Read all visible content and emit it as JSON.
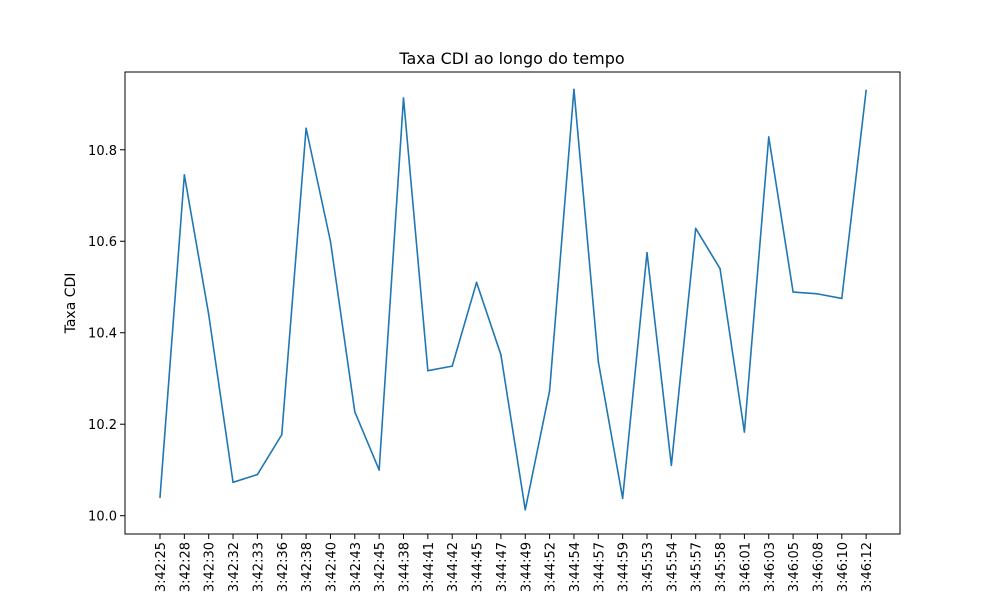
{
  "chart_data": {
    "type": "line",
    "title": "Taxa CDI ao longo do tempo",
    "xlabel": "",
    "ylabel": "Taxa CDI",
    "ylim": [
      9.96,
      10.97
    ],
    "yticks": [
      "10.0",
      "10.2",
      "10.4",
      "10.6",
      "10.8"
    ],
    "ytick_values": [
      10.0,
      10.2,
      10.4,
      10.6,
      10.8
    ],
    "grid": false,
    "categories": [
      "3:42:25",
      "3:42:28",
      "3:42:30",
      "3:42:32",
      "3:42:33",
      "3:42:36",
      "3:42:38",
      "3:42:40",
      "3:42:43",
      "3:42:45",
      "3:44:38",
      "3:44:41",
      "3:44:42",
      "3:44:45",
      "3:44:47",
      "3:44:49",
      "3:44:52",
      "3:44:54",
      "3:44:57",
      "3:44:59",
      "3:45:53",
      "3:45:54",
      "3:45:57",
      "3:45:58",
      "3:46:01",
      "3:46:03",
      "3:46:05",
      "3:46:08",
      "3:46:10",
      "3:46:12"
    ],
    "series": [
      {
        "color": "#1f77b4",
        "values": [
          10.04,
          10.745,
          10.44,
          10.073,
          10.09,
          10.177,
          10.847,
          10.6,
          10.227,
          10.1,
          10.913,
          10.317,
          10.327,
          10.51,
          10.352,
          10.013,
          10.273,
          10.932,
          10.337,
          10.038,
          10.575,
          10.11,
          10.628,
          10.54,
          10.183,
          10.828,
          10.489,
          10.485,
          10.475,
          10.93
        ]
      }
    ]
  }
}
